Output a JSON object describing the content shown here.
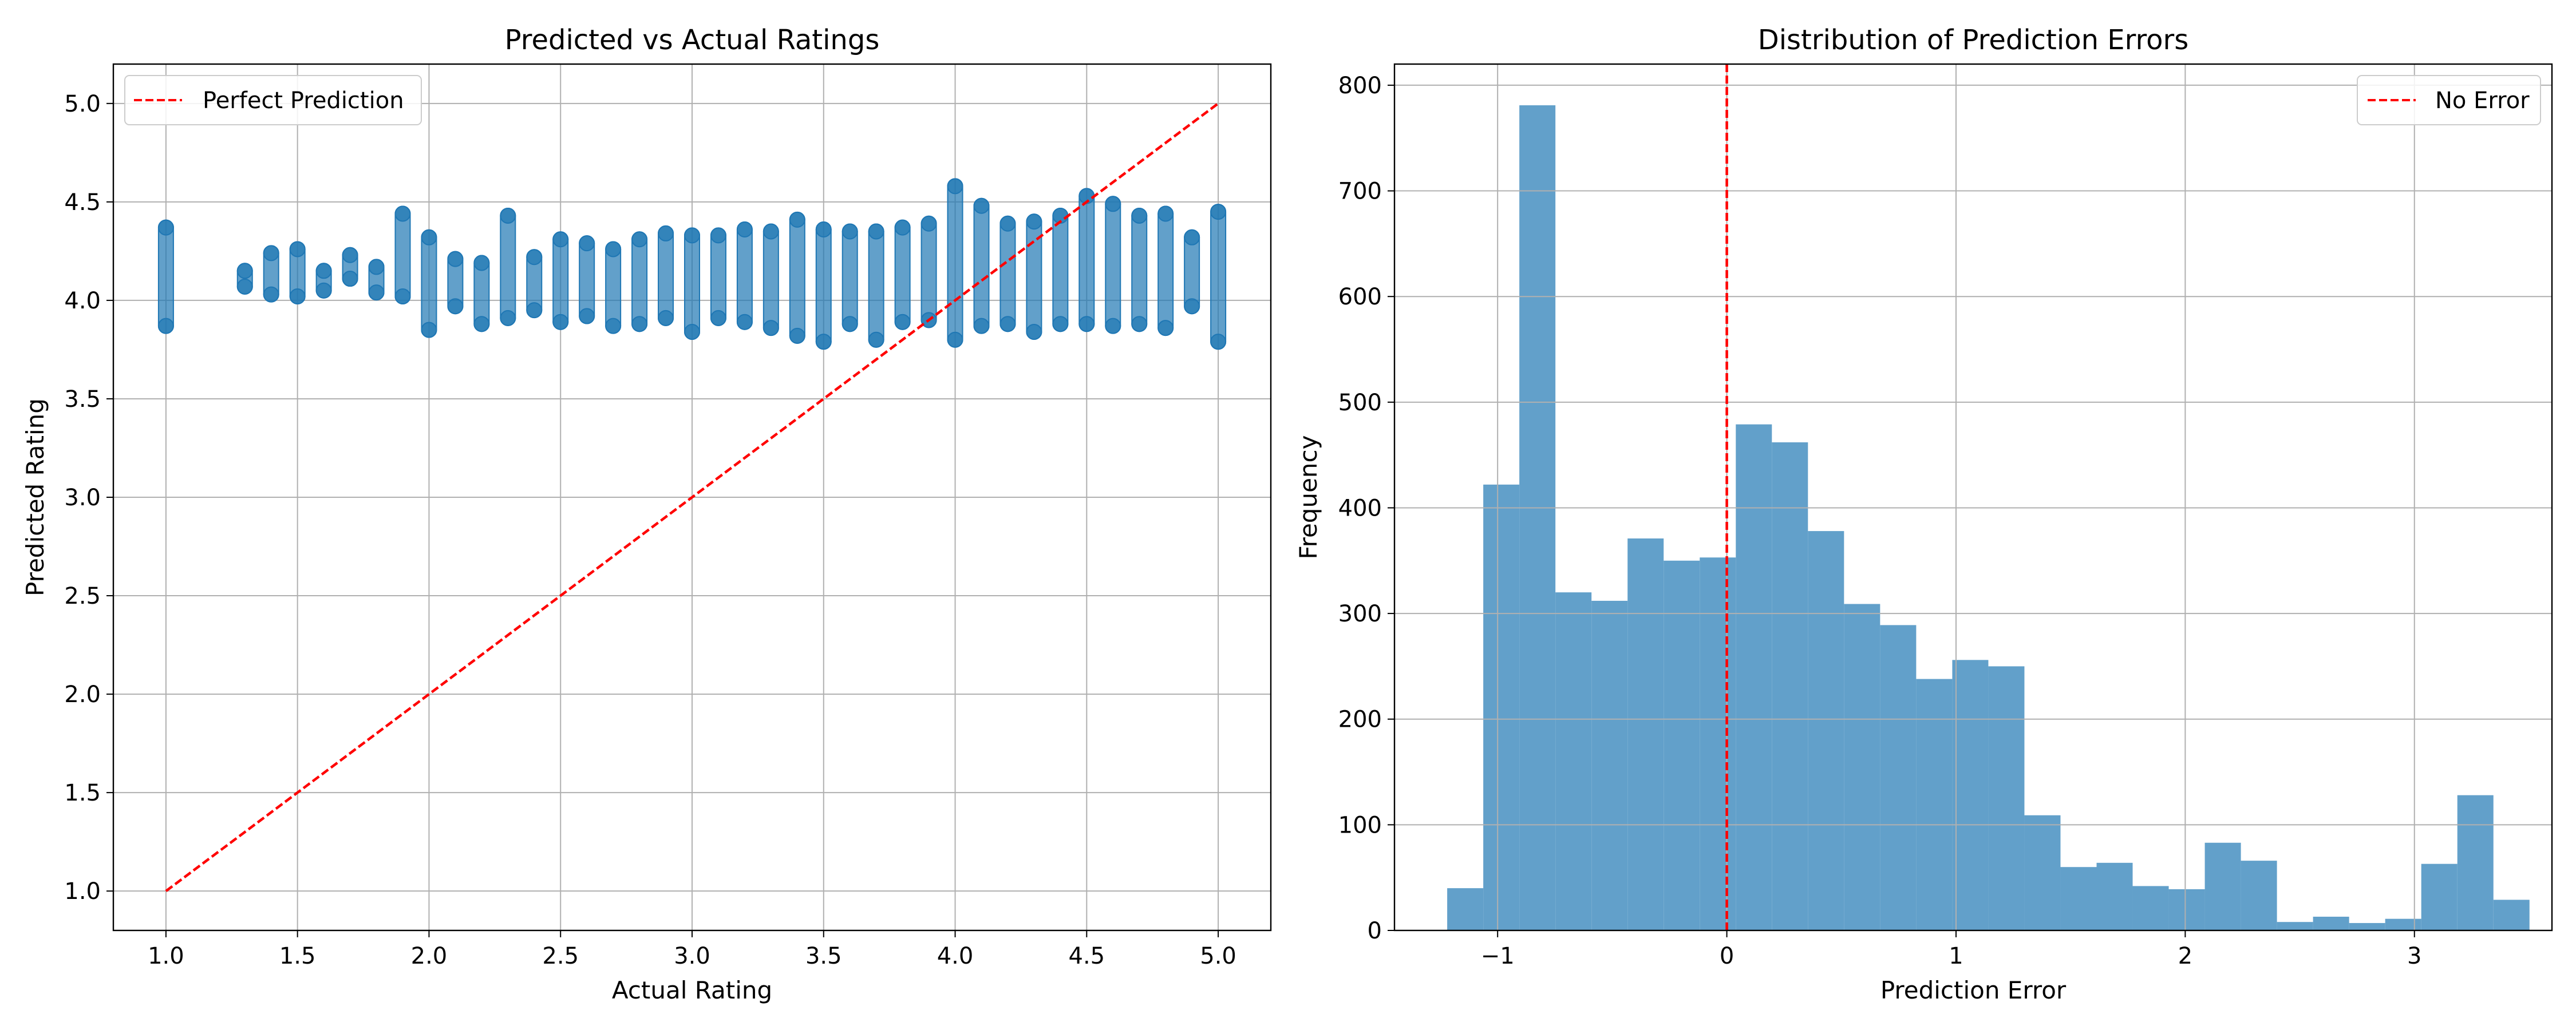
{
  "chart_data": [
    {
      "type": "scatter",
      "title": "Predicted vs Actual Ratings",
      "xlabel": "Actual Rating",
      "ylabel": "Predicted Rating",
      "xlim": [
        0.8,
        5.2
      ],
      "ylim": [
        0.8,
        5.2
      ],
      "xticks": [
        "1.0",
        "1.5",
        "2.0",
        "2.5",
        "3.0",
        "3.5",
        "4.0",
        "4.5",
        "5.0"
      ],
      "yticks": [
        "1.0",
        "1.5",
        "2.0",
        "2.5",
        "3.0",
        "3.5",
        "4.0",
        "4.5",
        "5.0"
      ],
      "grid": true,
      "legend": {
        "position": "top-left",
        "entries": [
          "Perfect Prediction"
        ]
      },
      "point_color": "#1f77b4",
      "line_color": "#ff0000",
      "reference_line": {
        "name": "Perfect Prediction",
        "x": [
          1.0,
          5.0
        ],
        "y": [
          1.0,
          5.0
        ],
        "style": "dashed"
      },
      "points": [
        {
          "x": 1.0,
          "y_min": 3.87,
          "y_max": 4.37
        },
        {
          "x": 1.3,
          "y_min": 4.07,
          "y_max": 4.15
        },
        {
          "x": 1.4,
          "y_min": 4.03,
          "y_max": 4.24
        },
        {
          "x": 1.5,
          "y_min": 4.02,
          "y_max": 4.26
        },
        {
          "x": 1.6,
          "y_min": 4.05,
          "y_max": 4.15
        },
        {
          "x": 1.7,
          "y_min": 4.11,
          "y_max": 4.23
        },
        {
          "x": 1.8,
          "y_min": 4.04,
          "y_max": 4.17
        },
        {
          "x": 1.9,
          "y_min": 4.02,
          "y_max": 4.44
        },
        {
          "x": 2.0,
          "y_min": 3.85,
          "y_max": 4.32
        },
        {
          "x": 2.1,
          "y_min": 3.97,
          "y_max": 4.21
        },
        {
          "x": 2.2,
          "y_min": 3.88,
          "y_max": 4.19
        },
        {
          "x": 2.3,
          "y_min": 3.91,
          "y_max": 4.43
        },
        {
          "x": 2.4,
          "y_min": 3.95,
          "y_max": 4.22
        },
        {
          "x": 2.5,
          "y_min": 3.89,
          "y_max": 4.31
        },
        {
          "x": 2.6,
          "y_min": 3.92,
          "y_max": 4.29
        },
        {
          "x": 2.7,
          "y_min": 3.87,
          "y_max": 4.26
        },
        {
          "x": 2.8,
          "y_min": 3.88,
          "y_max": 4.31
        },
        {
          "x": 2.9,
          "y_min": 3.91,
          "y_max": 4.34
        },
        {
          "x": 3.0,
          "y_min": 3.84,
          "y_max": 4.33
        },
        {
          "x": 3.1,
          "y_min": 3.91,
          "y_max": 4.33
        },
        {
          "x": 3.2,
          "y_min": 3.89,
          "y_max": 4.36
        },
        {
          "x": 3.3,
          "y_min": 3.86,
          "y_max": 4.35
        },
        {
          "x": 3.4,
          "y_min": 3.82,
          "y_max": 4.41
        },
        {
          "x": 3.5,
          "y_min": 3.79,
          "y_max": 4.36
        },
        {
          "x": 3.6,
          "y_min": 3.88,
          "y_max": 4.35
        },
        {
          "x": 3.7,
          "y_min": 3.8,
          "y_max": 4.35
        },
        {
          "x": 3.8,
          "y_min": 3.89,
          "y_max": 4.37
        },
        {
          "x": 3.9,
          "y_min": 3.9,
          "y_max": 4.39
        },
        {
          "x": 4.0,
          "y_min": 3.8,
          "y_max": 4.58
        },
        {
          "x": 4.1,
          "y_min": 3.87,
          "y_max": 4.48
        },
        {
          "x": 4.2,
          "y_min": 3.88,
          "y_max": 4.39
        },
        {
          "x": 4.3,
          "y_min": 3.84,
          "y_max": 4.4
        },
        {
          "x": 4.4,
          "y_min": 3.88,
          "y_max": 4.43
        },
        {
          "x": 4.5,
          "y_min": 3.88,
          "y_max": 4.53
        },
        {
          "x": 4.6,
          "y_min": 3.87,
          "y_max": 4.49
        },
        {
          "x": 4.7,
          "y_min": 3.88,
          "y_max": 4.43
        },
        {
          "x": 4.8,
          "y_min": 3.86,
          "y_max": 4.44
        },
        {
          "x": 4.9,
          "y_min": 3.97,
          "y_max": 4.32
        },
        {
          "x": 5.0,
          "y_min": 3.79,
          "y_max": 4.45
        }
      ]
    },
    {
      "type": "bar",
      "title": "Distribution of Prediction Errors",
      "xlabel": "Prediction Error",
      "ylabel": "Frequency",
      "xlim": [
        -1.45,
        3.6
      ],
      "ylim": [
        0,
        820
      ],
      "xticks": [
        "−1",
        "0",
        "1",
        "2",
        "3"
      ],
      "yticks": [
        "0",
        "100",
        "200",
        "300",
        "400",
        "500",
        "600",
        "700",
        "800"
      ],
      "grid": true,
      "legend": {
        "position": "top-right",
        "entries": [
          "No Error"
        ]
      },
      "bar_color": "#62a0ca",
      "line_color": "#ff0000",
      "reference_line": {
        "name": "No Error",
        "x": 0,
        "style": "dashed"
      },
      "bin_start": -1.22,
      "bin_width": 0.1574,
      "values": [
        40,
        422,
        781,
        320,
        312,
        371,
        350,
        353,
        479,
        462,
        378,
        309,
        289,
        238,
        256,
        250,
        109,
        60,
        64,
        42,
        39,
        83,
        66,
        8,
        13,
        7,
        11,
        63,
        128,
        29
      ]
    }
  ]
}
